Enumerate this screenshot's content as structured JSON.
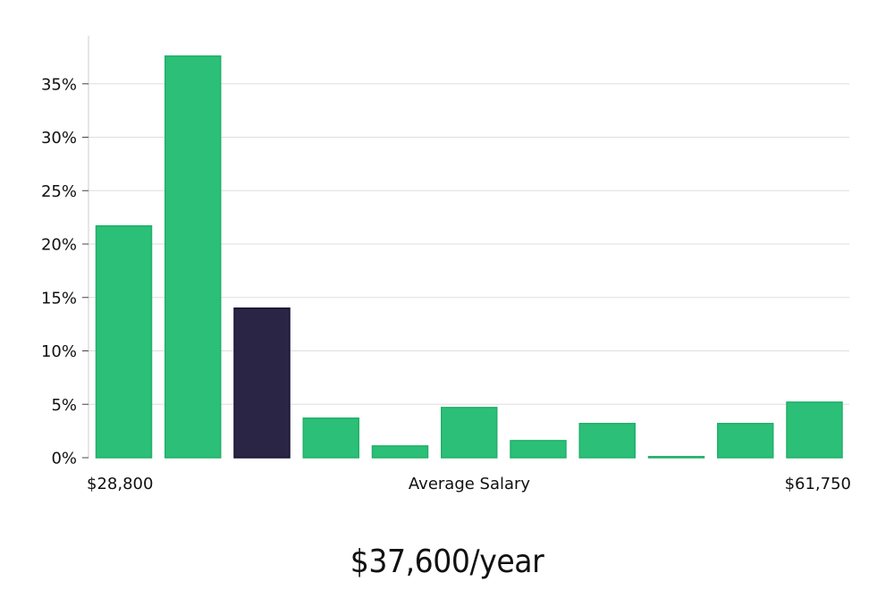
{
  "chart_data": {
    "type": "bar",
    "title": "",
    "xlabel": "Average Salary",
    "ylabel": "",
    "x_min_label": "$28,800",
    "x_max_label": "$61,750",
    "ylim": [
      0,
      39.5
    ],
    "yticks": [
      0,
      5,
      10,
      15,
      20,
      25,
      30,
      35
    ],
    "ytick_labels": [
      "0%",
      "5%",
      "10%",
      "15%",
      "20%",
      "25%",
      "30%",
      "35%"
    ],
    "grid": true,
    "values": [
      21.7,
      37.6,
      14.0,
      3.7,
      1.1,
      4.7,
      1.6,
      3.2,
      0.1,
      3.2,
      5.2
    ],
    "highlight_index": 2,
    "bar_color": "#2bbf77",
    "bar_edge_color": "#22b06a",
    "highlight_color": "#2a2545",
    "highlight_edge_color": "#1a1535",
    "grid_color": "#dddddd",
    "axis_color": "#cccccc"
  },
  "summary": {
    "salary_text": "$37,600/year"
  }
}
